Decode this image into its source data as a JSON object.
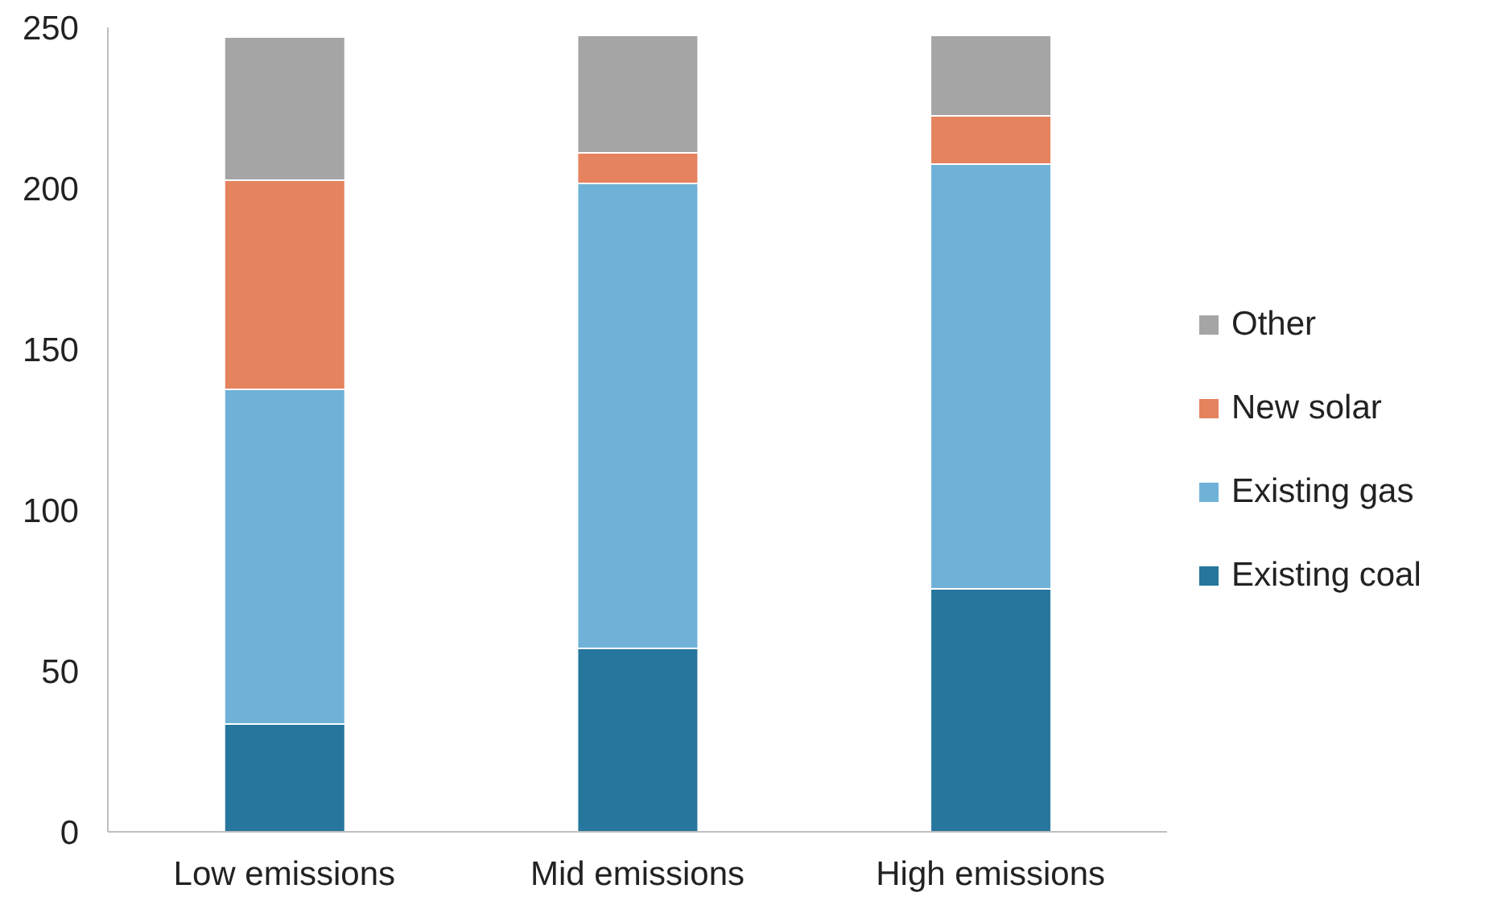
{
  "chart_data": {
    "type": "bar",
    "stacked": true,
    "categories": [
      "Low emissions",
      "Mid emissions",
      "High emissions"
    ],
    "series": [
      {
        "name": "Existing coal",
        "color": "#27769d",
        "values": [
          33.5,
          57,
          75.5
        ]
      },
      {
        "name": "Existing gas",
        "color": "#70b2d7",
        "values": [
          104,
          144.5,
          132
        ]
      },
      {
        "name": "New solar",
        "color": "#e5835f",
        "values": [
          65,
          9.5,
          15
        ]
      },
      {
        "name": "Other",
        "color": "#a5a5a5",
        "values": [
          44.5,
          36.5,
          25
        ]
      }
    ],
    "ylim": [
      0,
      250
    ],
    "yticks": [
      0,
      50,
      100,
      150,
      200,
      250
    ],
    "grid": false,
    "legend": "right"
  }
}
